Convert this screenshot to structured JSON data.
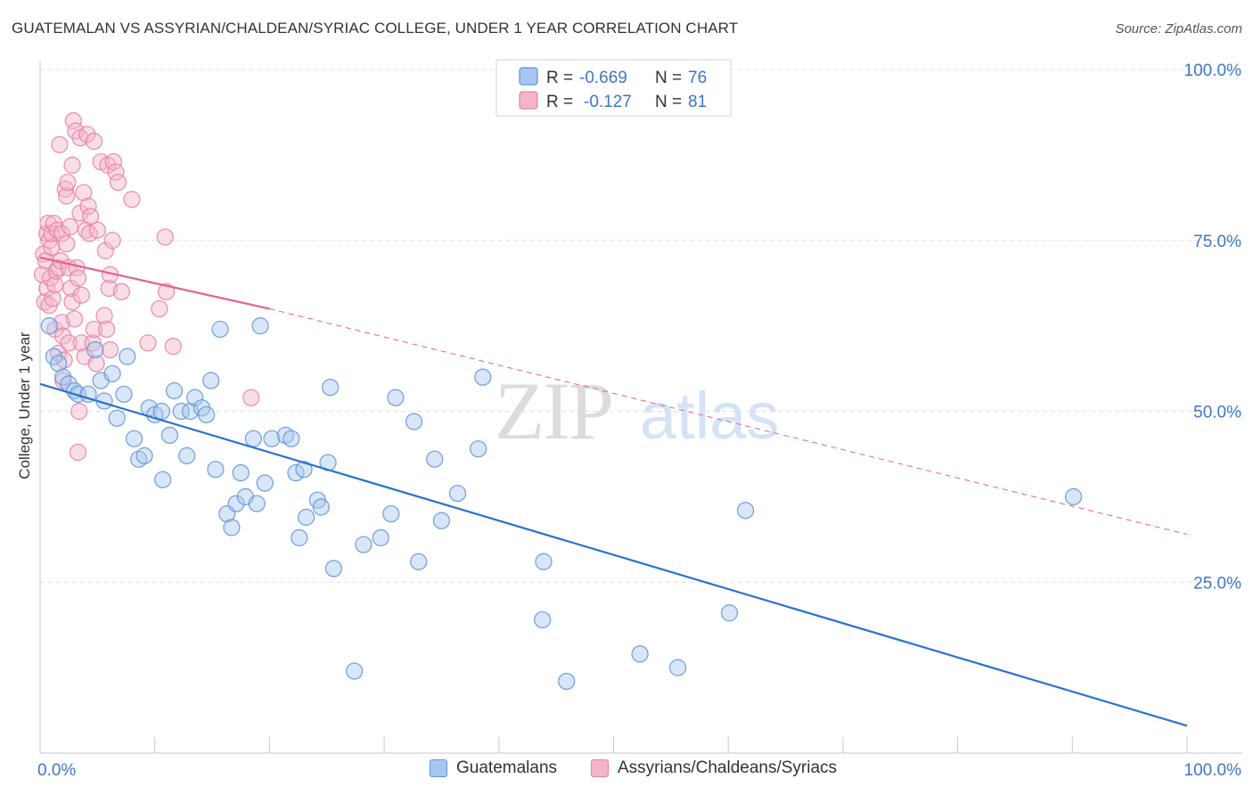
{
  "header": {
    "title": "GUATEMALAN VS ASSYRIAN/CHALDEAN/SYRIAC COLLEGE, UNDER 1 YEAR CORRELATION CHART",
    "source": "Source: ZipAtlas.com"
  },
  "watermark": {
    "zip": "ZIP",
    "atlas": "atlas"
  },
  "chart_data": {
    "type": "scatter",
    "ylabel": "College, Under 1 year",
    "xlim": [
      0,
      100
    ],
    "ylim": [
      0,
      100
    ],
    "x_tick_labels": [
      "0.0%",
      "100.0%"
    ],
    "y_ticks": [
      25,
      50,
      75,
      100
    ],
    "y_tick_labels": [
      "25.0%",
      "50.0%",
      "75.0%",
      "100.0%"
    ],
    "grid": true,
    "legend_placement": "top-center",
    "colors": {
      "blue_fill": "#a9c7ee",
      "blue_stroke": "#5f95d8",
      "blue_line": "#2a72d0",
      "pink_fill": "#f5b5c9",
      "pink_stroke": "#e97fa1",
      "pink_line": "#e4608d",
      "tick_label": "#3e76c6"
    },
    "stats_legend": [
      {
        "r_label": "R =",
        "r_value": "-0.669",
        "n_label": "N =",
        "n_value": "76"
      },
      {
        "r_label": "R =",
        "r_value": "-0.127",
        "n_label": "N =",
        "n_value": "81"
      }
    ],
    "series": [
      {
        "name": "Guatemalans",
        "trend": {
          "x": [
            0,
            100
          ],
          "y": [
            54,
            4
          ]
        },
        "points": [
          [
            0.8,
            62.5
          ],
          [
            1.2,
            58
          ],
          [
            1.6,
            57
          ],
          [
            2.0,
            55
          ],
          [
            2.5,
            54
          ],
          [
            3.0,
            53
          ],
          [
            3.3,
            52.5
          ],
          [
            4.2,
            52.5
          ],
          [
            4.8,
            59
          ],
          [
            5.3,
            54.5
          ],
          [
            5.6,
            51.5
          ],
          [
            6.3,
            55.5
          ],
          [
            6.7,
            49
          ],
          [
            7.3,
            52.5
          ],
          [
            7.6,
            58
          ],
          [
            8.2,
            46
          ],
          [
            8.6,
            43
          ],
          [
            9.1,
            43.5
          ],
          [
            9.5,
            50.5
          ],
          [
            10.0,
            49.5
          ],
          [
            10.6,
            50
          ],
          [
            10.7,
            40
          ],
          [
            11.3,
            46.5
          ],
          [
            11.7,
            53
          ],
          [
            12.3,
            50
          ],
          [
            12.8,
            43.5
          ],
          [
            13.1,
            50
          ],
          [
            13.5,
            52
          ],
          [
            14.1,
            50.5
          ],
          [
            14.5,
            49.5
          ],
          [
            14.9,
            54.5
          ],
          [
            15.3,
            41.5
          ],
          [
            15.7,
            62
          ],
          [
            16.3,
            35
          ],
          [
            16.7,
            33
          ],
          [
            17.1,
            36.5
          ],
          [
            17.5,
            41
          ],
          [
            17.9,
            37.5
          ],
          [
            18.6,
            46
          ],
          [
            18.9,
            36.5
          ],
          [
            19.2,
            62.5
          ],
          [
            19.6,
            39.5
          ],
          [
            20.2,
            46
          ],
          [
            21.4,
            46.5
          ],
          [
            21.9,
            46
          ],
          [
            22.3,
            41
          ],
          [
            22.6,
            31.5
          ],
          [
            23.0,
            41.5
          ],
          [
            23.2,
            34.5
          ],
          [
            24.2,
            37
          ],
          [
            24.5,
            36
          ],
          [
            25.1,
            42.5
          ],
          [
            25.3,
            53.5
          ],
          [
            25.6,
            27
          ],
          [
            27.4,
            12
          ],
          [
            28.2,
            30.5
          ],
          [
            29.7,
            31.5
          ],
          [
            30.6,
            35
          ],
          [
            31.0,
            52
          ],
          [
            32.6,
            48.5
          ],
          [
            33.0,
            28
          ],
          [
            34.4,
            43
          ],
          [
            35.0,
            34
          ],
          [
            36.4,
            38
          ],
          [
            38.2,
            44.5
          ],
          [
            38.6,
            55
          ],
          [
            43.8,
            19.5
          ],
          [
            43.9,
            28
          ],
          [
            45.9,
            10.5
          ],
          [
            52.3,
            14.5
          ],
          [
            55.6,
            12.5
          ],
          [
            60.1,
            20.5
          ],
          [
            61.5,
            35.5
          ],
          [
            90.1,
            37.5
          ]
        ]
      },
      {
        "name": "Assyrians/Chaldeans/Syriacs",
        "trend": {
          "x": [
            0,
            20
          ],
          "y": [
            72.5,
            65
          ]
        },
        "trend_ext": {
          "x": [
            20,
            100
          ],
          "y": [
            65,
            32
          ]
        },
        "points": [
          [
            0.2,
            70
          ],
          [
            0.3,
            73
          ],
          [
            0.4,
            66
          ],
          [
            0.5,
            72
          ],
          [
            0.6,
            68
          ],
          [
            0.6,
            76
          ],
          [
            0.7,
            77.5
          ],
          [
            0.8,
            65.5
          ],
          [
            0.8,
            75
          ],
          [
            0.9,
            69.5
          ],
          [
            1.0,
            74
          ],
          [
            1.0,
            76
          ],
          [
            1.1,
            66.5
          ],
          [
            1.2,
            77.5
          ],
          [
            1.3,
            68.5
          ],
          [
            1.3,
            62
          ],
          [
            1.4,
            70.5
          ],
          [
            1.5,
            76.5
          ],
          [
            1.6,
            71
          ],
          [
            1.6,
            58.5
          ],
          [
            1.7,
            89
          ],
          [
            1.8,
            72
          ],
          [
            1.9,
            76
          ],
          [
            1.9,
            63
          ],
          [
            2.0,
            54.5
          ],
          [
            2.0,
            61
          ],
          [
            2.1,
            57.5
          ],
          [
            2.2,
            82.5
          ],
          [
            2.3,
            74.5
          ],
          [
            2.3,
            81.5
          ],
          [
            2.4,
            83.5
          ],
          [
            2.5,
            71
          ],
          [
            2.5,
            60
          ],
          [
            2.6,
            77
          ],
          [
            2.7,
            68
          ],
          [
            2.8,
            86
          ],
          [
            2.8,
            66
          ],
          [
            2.9,
            92.5
          ],
          [
            3.0,
            63.5
          ],
          [
            3.1,
            91
          ],
          [
            3.2,
            71
          ],
          [
            3.3,
            44
          ],
          [
            3.3,
            69.5
          ],
          [
            3.4,
            50
          ],
          [
            3.5,
            90
          ],
          [
            3.5,
            79
          ],
          [
            3.6,
            67
          ],
          [
            3.6,
            60
          ],
          [
            3.8,
            82
          ],
          [
            3.9,
            58
          ],
          [
            4.0,
            76.5
          ],
          [
            4.1,
            90.5
          ],
          [
            4.2,
            80
          ],
          [
            4.3,
            76
          ],
          [
            4.4,
            78.5
          ],
          [
            4.6,
            60
          ],
          [
            4.7,
            62
          ],
          [
            4.7,
            89.5
          ],
          [
            4.9,
            57
          ],
          [
            5.0,
            76.5
          ],
          [
            5.3,
            86.5
          ],
          [
            5.6,
            64
          ],
          [
            5.7,
            73.5
          ],
          [
            5.8,
            62
          ],
          [
            5.9,
            86
          ],
          [
            6.0,
            68
          ],
          [
            6.1,
            59
          ],
          [
            6.1,
            70
          ],
          [
            6.3,
            75
          ],
          [
            6.4,
            86.5
          ],
          [
            6.6,
            85
          ],
          [
            6.8,
            83.5
          ],
          [
            7.1,
            67.5
          ],
          [
            8.0,
            81
          ],
          [
            9.4,
            60
          ],
          [
            10.4,
            65
          ],
          [
            10.9,
            75.5
          ],
          [
            11.0,
            67.5
          ],
          [
            11.6,
            59.5
          ],
          [
            18.4,
            52
          ]
        ]
      }
    ]
  }
}
